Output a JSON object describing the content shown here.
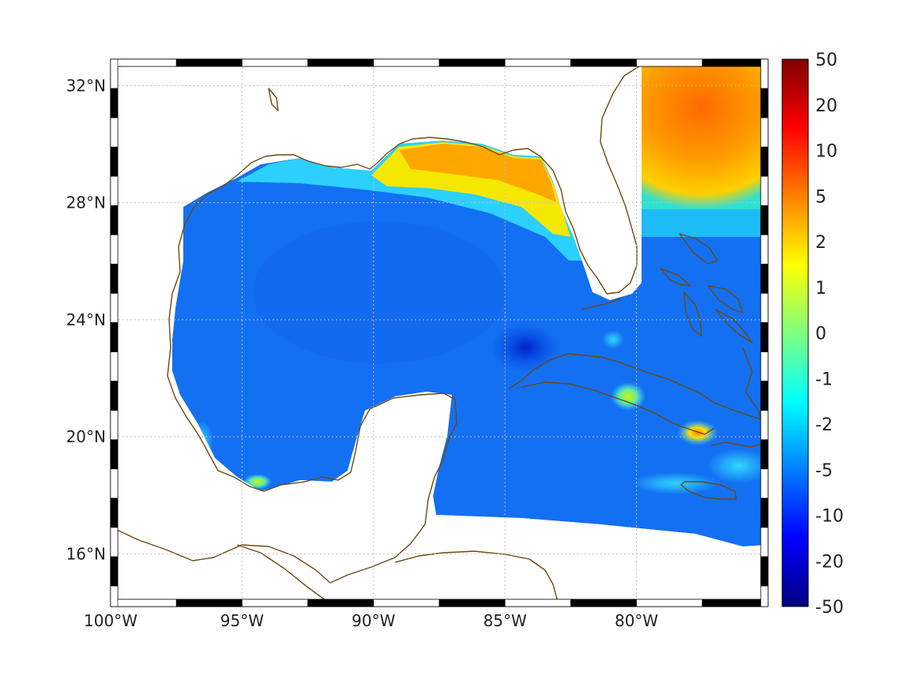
{
  "map": {
    "projection": "equirectangular",
    "extent": {
      "lon": [
        -100,
        -75
      ],
      "lat": [
        14.2,
        32.9
      ]
    },
    "grid": true,
    "x_ticks": [
      {
        "value": -100,
        "label": "100°W"
      },
      {
        "value": -95,
        "label": "95°W"
      },
      {
        "value": -90,
        "label": "90°W"
      },
      {
        "value": -85,
        "label": "85°W"
      },
      {
        "value": -80,
        "label": "80°W"
      }
    ],
    "y_ticks": [
      {
        "value": 32,
        "label": "32°N"
      },
      {
        "value": 28,
        "label": "28°N"
      },
      {
        "value": 24,
        "label": "24°N"
      },
      {
        "value": 20,
        "label": "20°N"
      },
      {
        "value": 16,
        "label": "16°N"
      }
    ],
    "coastline_color": "#6b4a12",
    "field_colormap": "jet",
    "field_notes": "positive values along northern Gulf coast and Atlantic off SE USA; negative values across central Gulf and Caribbean"
  },
  "colorbar": {
    "colormap": "jet",
    "placement": "right",
    "labels": [
      "50",
      "20",
      "10",
      "5",
      "2",
      "1",
      "0",
      "-1",
      "-2",
      "-5",
      "-10",
      "-20",
      "-50"
    ]
  }
}
